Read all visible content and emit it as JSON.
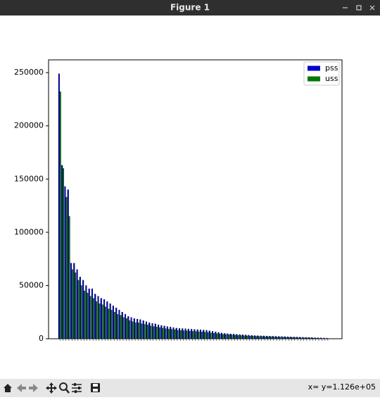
{
  "window_title": "Figure 1",
  "status": "x= y=1.126e+05",
  "chart_data": {
    "type": "bar",
    "categories": [
      null,
      null,
      null,
      null,
      null,
      null,
      null,
      null,
      null,
      null,
      null,
      null,
      null,
      null,
      null,
      null,
      null,
      null,
      null,
      null,
      null,
      null,
      null,
      null,
      null,
      null,
      null,
      null,
      null,
      null,
      null,
      null,
      null,
      null,
      null,
      null,
      null,
      null,
      null,
      null,
      null,
      null,
      null,
      null,
      null,
      null,
      null,
      null,
      null,
      null,
      null,
      null,
      null,
      null,
      null,
      null,
      null,
      null,
      null,
      null,
      null,
      null,
      null,
      null,
      null,
      null,
      null,
      null,
      null,
      null,
      null,
      null,
      null,
      null,
      null,
      null,
      null,
      null,
      null,
      null,
      null,
      null,
      null,
      null,
      null,
      null,
      null,
      null,
      null,
      null
    ],
    "series": [
      {
        "name": "pss",
        "color": "#0000cc",
        "values": [
          249000,
          163000,
          143000,
          140000,
          71000,
          71000,
          65000,
          58000,
          55000,
          50000,
          47000,
          47000,
          42000,
          40000,
          38000,
          37000,
          35000,
          33000,
          31000,
          29000,
          27000,
          25000,
          23000,
          21000,
          20000,
          19000,
          18500,
          18000,
          17000,
          16000,
          15000,
          14500,
          14000,
          13000,
          12500,
          12000,
          11500,
          11000,
          10500,
          10000,
          9800,
          9600,
          9400,
          9200,
          9000,
          8800,
          8600,
          8400,
          8200,
          8000,
          7500,
          7000,
          6500,
          6000,
          5500,
          5000,
          4800,
          4600,
          4400,
          4200,
          4000,
          3800,
          3600,
          3400,
          3200,
          3000,
          2900,
          2800,
          2700,
          2600,
          2500,
          2400,
          2300,
          2200,
          2100,
          2000,
          1900,
          1800,
          1700,
          1600,
          1500,
          1400,
          1300,
          1200,
          1100,
          1000,
          900,
          800,
          700,
          600
        ]
      },
      {
        "name": "uss",
        "color": "#007a00",
        "values": [
          232000,
          160000,
          133000,
          115000,
          65000,
          62000,
          55000,
          50000,
          45000,
          43000,
          40000,
          38000,
          35000,
          33000,
          32000,
          30000,
          28000,
          27000,
          25000,
          23000,
          22000,
          20000,
          19000,
          17000,
          16000,
          15000,
          15000,
          14000,
          13500,
          13000,
          12000,
          11500,
          11000,
          10500,
          10000,
          9500,
          9000,
          8800,
          8500,
          8000,
          7800,
          7600,
          7400,
          7200,
          7000,
          6800,
          6600,
          6400,
          6200,
          6000,
          5500,
          5200,
          4800,
          4500,
          4200,
          4000,
          3800,
          3600,
          3400,
          3200,
          3000,
          2800,
          2700,
          2500,
          2400,
          2300,
          2200,
          2100,
          2000,
          1900,
          1800,
          1700,
          1600,
          1500,
          1400,
          1400,
          1300,
          1200,
          1100,
          1000,
          900,
          800,
          800,
          700,
          600,
          500,
          400,
          300,
          200,
          100
        ]
      }
    ],
    "ylim": [
      0,
      262000
    ],
    "yticks": [
      0,
      50000,
      100000,
      150000,
      200000,
      250000
    ],
    "legend": "upper right"
  }
}
